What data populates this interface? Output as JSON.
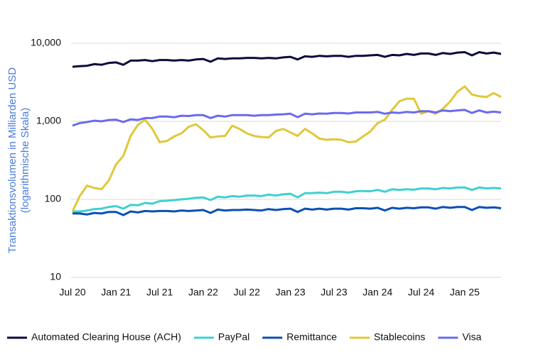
{
  "chart_data": {
    "type": "line",
    "y_label": [
      "Transaktionsvolumen in Milliarden USD",
      "(logarithmische Skala)"
    ],
    "log_scale": true,
    "grid": true,
    "legend": "bottom",
    "ylim": [
      10,
      10000
    ],
    "yticks": [
      10,
      100,
      {
        "value": 1000,
        "label": "1,000"
      },
      {
        "value": 10000,
        "label": "10,000"
      }
    ],
    "categories": [
      "Jul 20",
      null,
      null,
      null,
      null,
      null,
      "Jan 21",
      null,
      null,
      null,
      null,
      null,
      "Jul 21",
      null,
      null,
      null,
      null,
      null,
      "Jan 22",
      null,
      null,
      null,
      null,
      null,
      "Jul 22",
      null,
      null,
      null,
      null,
      null,
      "Jan 23",
      null,
      null,
      null,
      null,
      null,
      "Jul 23",
      null,
      null,
      null,
      null,
      null,
      "Jan 24",
      null,
      null,
      null,
      null,
      null,
      "Jul 24",
      null,
      null,
      null,
      null,
      null,
      "Jan 25",
      null,
      null,
      null,
      null,
      null
    ],
    "series": [
      {
        "name": "Automated Clearing House (ACH)",
        "color": "#0b0b3b",
        "values": [
          5000,
          5100,
          5150,
          5400,
          5300,
          5600,
          5700,
          5300,
          6000,
          6000,
          6100,
          5900,
          6100,
          6100,
          6000,
          6100,
          6000,
          6200,
          6300,
          5800,
          6400,
          6300,
          6400,
          6400,
          6500,
          6500,
          6400,
          6500,
          6400,
          6600,
          6700,
          6200,
          6800,
          6700,
          6900,
          6800,
          6900,
          6900,
          6700,
          6900,
          6900,
          7000,
          7100,
          6700,
          7100,
          7000,
          7300,
          7100,
          7400,
          7400,
          7100,
          7500,
          7300,
          7600,
          7700,
          7000,
          7700,
          7400,
          7600,
          7300
        ]
      },
      {
        "name": "PayPal",
        "color": "#3fd0d4",
        "values": [
          70,
          70,
          72,
          75,
          76,
          80,
          82,
          76,
          85,
          84,
          90,
          88,
          95,
          96,
          98,
          100,
          102,
          105,
          106,
          98,
          108,
          106,
          110,
          108,
          112,
          112,
          110,
          115,
          112,
          116,
          118,
          106,
          120,
          120,
          122,
          120,
          125,
          125,
          122,
          127,
          128,
          127,
          132,
          125,
          135,
          132,
          135,
          133,
          138,
          138,
          135,
          140,
          138,
          142,
          142,
          132,
          142,
          138,
          140,
          138
        ]
      },
      {
        "name": "Remittance",
        "color": "#0b4fb5",
        "values": [
          66,
          66,
          64,
          67,
          66,
          69,
          69,
          63,
          70,
          68,
          71,
          70,
          71,
          71,
          70,
          72,
          71,
          72,
          73,
          67,
          74,
          72,
          73,
          73,
          74,
          73,
          72,
          75,
          73,
          75,
          76,
          69,
          76,
          74,
          76,
          74,
          76,
          76,
          74,
          77,
          77,
          76,
          78,
          72,
          78,
          76,
          78,
          77,
          79,
          79,
          76,
          80,
          78,
          80,
          80,
          73,
          80,
          78,
          79,
          77
        ]
      },
      {
        "name": "Stablecoins",
        "color": "#e0c83a",
        "values": [
          70,
          110,
          150,
          140,
          135,
          175,
          280,
          360,
          650,
          900,
          1050,
          800,
          540,
          560,
          640,
          700,
          850,
          920,
          770,
          620,
          640,
          650,
          880,
          800,
          700,
          650,
          630,
          620,
          750,
          800,
          720,
          650,
          800,
          700,
          600,
          580,
          590,
          580,
          540,
          550,
          640,
          740,
          950,
          1050,
          1400,
          1800,
          1950,
          1950,
          1250,
          1350,
          1250,
          1450,
          1800,
          2400,
          2800,
          2200,
          2100,
          2050,
          2300,
          2050
        ]
      },
      {
        "name": "Visa",
        "color": "#6a6af0",
        "values": [
          880,
          950,
          980,
          1020,
          1000,
          1040,
          1050,
          980,
          1060,
          1040,
          1100,
          1100,
          1150,
          1150,
          1130,
          1180,
          1170,
          1200,
          1200,
          1100,
          1180,
          1150,
          1200,
          1200,
          1200,
          1180,
          1200,
          1200,
          1220,
          1230,
          1250,
          1130,
          1250,
          1230,
          1260,
          1250,
          1280,
          1280,
          1260,
          1300,
          1300,
          1300,
          1320,
          1250,
          1300,
          1280,
          1320,
          1300,
          1350,
          1350,
          1300,
          1380,
          1350,
          1380,
          1400,
          1280,
          1380,
          1300,
          1330,
          1300
        ]
      }
    ]
  }
}
